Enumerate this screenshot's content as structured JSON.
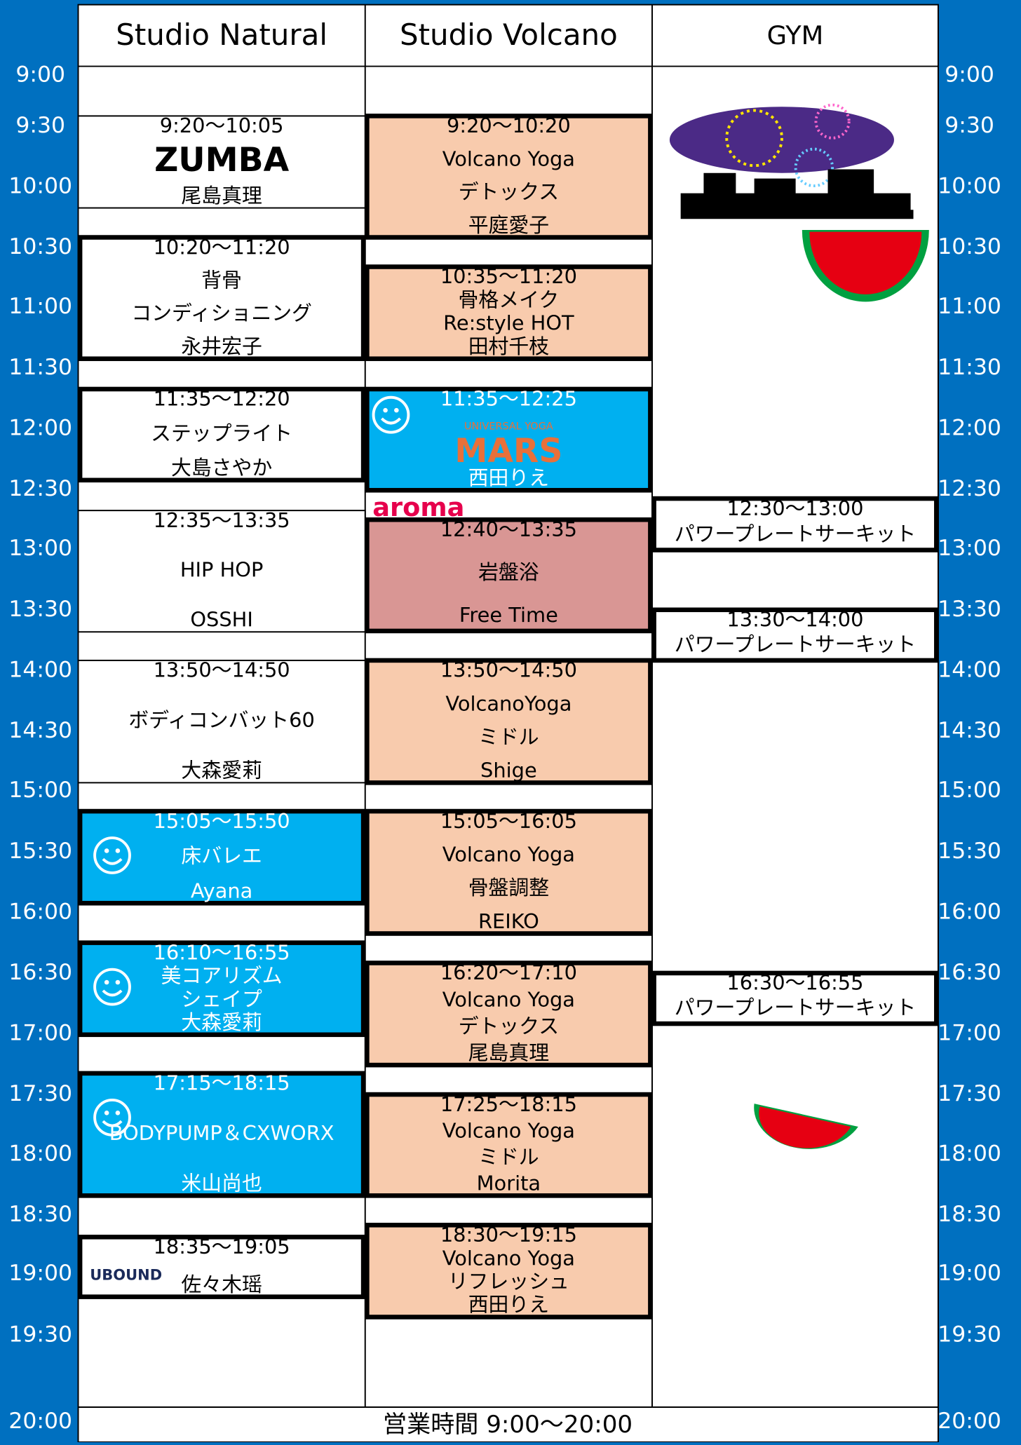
{
  "header": {
    "columns": [
      "Studio Natural",
      "Studio Volcano",
      "GYM"
    ]
  },
  "times": [
    "9:00",
    "9:30",
    "10:00",
    "10:30",
    "11:00",
    "11:30",
    "12:00",
    "12:30",
    "13:00",
    "13:30",
    "14:00",
    "14:30",
    "15:00",
    "15:30",
    "16:00",
    "16:30",
    "17:00",
    "17:30",
    "18:00",
    "18:30",
    "19:00",
    "19:30",
    "20:00"
  ],
  "studios": [
    {
      "events": [
        {
          "time": "9:20〜10:05",
          "logo": "ZUMBA",
          "lines": [],
          "instructor": "尾島真理"
        },
        {
          "time": "10:20〜11:20",
          "lines": [
            "背骨",
            "コンディショニング"
          ],
          "instructor": "永井宏子"
        },
        {
          "time": "11:35〜12:20",
          "lines": [
            "ステップライト"
          ],
          "instructor": "大島さやか"
        },
        {
          "time": "12:35〜13:35",
          "lines": [
            "HIP HOP"
          ],
          "instructor": "OSSHI"
        },
        {
          "time": "13:50〜14:50",
          "lines": [
            "ボディコンバット60"
          ],
          "instructor": "大森愛莉"
        },
        {
          "time": "15:05〜15:50",
          "lines": [
            "床バレエ"
          ],
          "instructor": "Ayana"
        },
        {
          "time": "16:10〜16:55",
          "lines": [
            "美コアリズム",
            "シェイプ"
          ],
          "instructor": "大森愛莉"
        },
        {
          "time": "17:15〜18:15",
          "lines": [
            "BODYPUMP＆CXWORX"
          ],
          "instructor": "米山尚也"
        },
        {
          "time": "18:35〜19:05",
          "logo": "UBOUND",
          "lines": [],
          "instructor": "佐々木瑶"
        }
      ]
    },
    {
      "events": [
        {
          "time": "9:20〜10:20",
          "lines": [
            "Volcano Yoga",
            "デトックス"
          ],
          "instructor": "平庭愛子"
        },
        {
          "time": "10:35〜11:20",
          "lines": [
            "骨格メイク",
            "Re:style HOT"
          ],
          "instructor": "田村千枝"
        },
        {
          "time": "11:35〜12:25",
          "lines": [
            "UNIVERSAL YOGA"
          ],
          "logo": "MARS",
          "instructor": "西田りえ"
        },
        {
          "tag": "aroma",
          "time": "12:40〜13:35",
          "lines": [
            "岩盤浴",
            "Free Time"
          ]
        },
        {
          "time": "13:50〜14:50",
          "lines": [
            "VolcanoYoga",
            "ミドル"
          ],
          "instructor": "Shige"
        },
        {
          "time": "15:05〜16:05",
          "lines": [
            "Volcano Yoga",
            "骨盤調整"
          ],
          "instructor": "REIKO"
        },
        {
          "time": "16:20〜17:10",
          "lines": [
            "Volcano Yoga",
            "デトックス"
          ],
          "instructor": "尾島真理"
        },
        {
          "time": "17:25〜18:15",
          "lines": [
            "Volcano Yoga",
            "ミドル"
          ],
          "instructor": "Morita"
        },
        {
          "time": "18:30〜19:15",
          "lines": [
            "Volcano Yoga",
            "リフレッシュ"
          ],
          "instructor": "西田りえ"
        }
      ]
    },
    {
      "events": [
        {
          "time": "12:30〜13:00",
          "lines": [
            "パワープレートサーキット"
          ]
        },
        {
          "time": "13:30〜14:00",
          "lines": [
            "パワープレートサーキット"
          ]
        },
        {
          "time": "16:30〜16:55",
          "lines": [
            "パワープレートサーキット"
          ]
        }
      ]
    }
  ],
  "footer": "営業時間  9:00〜20:00"
}
